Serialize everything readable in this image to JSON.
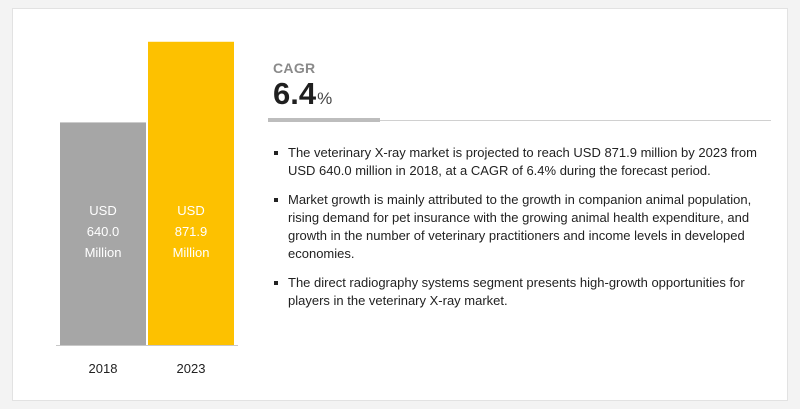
{
  "chart_data": {
    "type": "bar",
    "categories": [
      "2018",
      "2023"
    ],
    "values": [
      640.0,
      871.9
    ],
    "bar_labels": [
      [
        "USD",
        "640.0",
        "Million"
      ],
      [
        "USD",
        "871.9",
        "Million"
      ]
    ],
    "bar_colors": [
      "#a6a6a6",
      "#fdc100"
    ],
    "ylim": [
      0,
      900
    ],
    "title": "",
    "xlabel": "",
    "ylabel": "",
    "grid": false,
    "legend": "none"
  },
  "cagr": {
    "title": "CAGR",
    "value": "6.4",
    "unit": "%"
  },
  "bullets": [
    "The veterinary X-ray market is projected to reach USD 871.9 million by 2023 from USD 640.0 million in 2018, at a CAGR of 6.4% during the forecast period.",
    "Market growth is mainly attributed to the growth in companion animal population, rising demand for pet insurance with the growing animal health expenditure, and growth in the number of veterinary practitioners and income levels in developed economies.",
    "The direct radiography systems segment presents high-growth opportunities for players in the veterinary X-ray market."
  ]
}
